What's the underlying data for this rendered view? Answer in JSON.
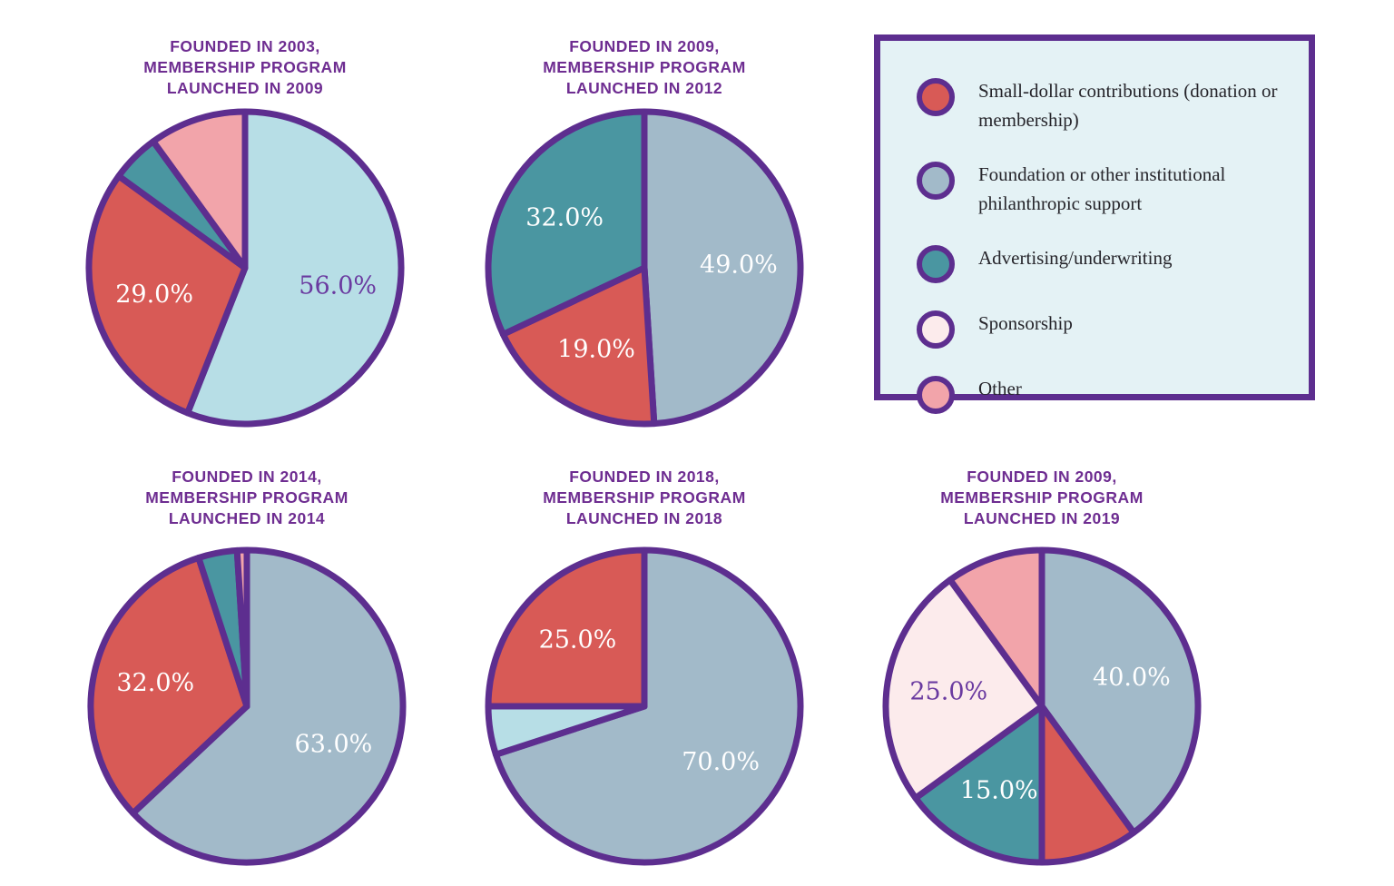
{
  "colors": {
    "stroke_purple": "#5d2e8f",
    "title_purple": "#6e2d91",
    "label_purple": "#6a3aa0",
    "label_white": "#ffffff",
    "red": "#d85a56",
    "gray_blue": "#a2bac9",
    "teal": "#4a96a1",
    "light_pink": "#fcebec",
    "pink": "#f2a4aa",
    "light_cyan": "#b7dee6",
    "legend_background": "#e4f2f5",
    "page_background": "#ffffff"
  },
  "legend": {
    "items": [
      {
        "label": "Small-dollar contributions (donation or membership)",
        "color": "#d85a56"
      },
      {
        "label": "Foundation or other institutional philanthropic support",
        "color": "#a2bac9"
      },
      {
        "label": "Advertising/underwriting",
        "color": "#4a96a1"
      },
      {
        "label": "Sponsorship",
        "color": "#fcebec"
      },
      {
        "label": "Other",
        "color": "#f2a4aa"
      }
    ]
  },
  "chart_data": [
    {
      "type": "pie",
      "title": "FOUNDED IN 2003,\nMEMBERSHIP PROGRAM\nLAUNCHED IN 2009",
      "start_angle_deg": 0,
      "direction": "clockwise",
      "slices": [
        {
          "category": "light blue (not in legend)",
          "value": 56,
          "color": "#b7dee6",
          "pct_label": "56.0%",
          "pct_label_color": "#6a3aa0"
        },
        {
          "category": "Small-dollar contributions (donation or membership)",
          "value": 29,
          "color": "#d85a56",
          "pct_label": "29.0%",
          "pct_label_color": "#ffffff"
        },
        {
          "category": "Advertising/underwriting",
          "value": 5,
          "color": "#4a96a1",
          "pct_label": null,
          "pct_label_color": null
        },
        {
          "category": "Other",
          "value": 10,
          "color": "#f2a4aa",
          "pct_label": null,
          "pct_label_color": null
        }
      ]
    },
    {
      "type": "pie",
      "title": "FOUNDED IN 2009,\nMEMBERSHIP PROGRAM\nLAUNCHED IN 2012",
      "start_angle_deg": 0,
      "direction": "clockwise",
      "slices": [
        {
          "category": "Foundation or other institutional philanthropic support",
          "value": 49,
          "color": "#a2bac9",
          "pct_label": "49.0%",
          "pct_label_color": "#ffffff"
        },
        {
          "category": "Small-dollar contributions (donation or membership)",
          "value": 19,
          "color": "#d85a56",
          "pct_label": "19.0%",
          "pct_label_color": "#ffffff"
        },
        {
          "category": "Advertising/underwriting",
          "value": 32,
          "color": "#4a96a1",
          "pct_label": "32.0%",
          "pct_label_color": "#ffffff"
        }
      ]
    },
    {
      "type": "pie",
      "title": "FOUNDED IN 2014,\nMEMBERSHIP PROGRAM\nLAUNCHED IN 2014",
      "start_angle_deg": 0,
      "direction": "clockwise",
      "slices": [
        {
          "category": "Foundation or other institutional philanthropic support",
          "value": 63,
          "color": "#a2bac9",
          "pct_label": "63.0%",
          "pct_label_color": "#ffffff"
        },
        {
          "category": "Small-dollar contributions (donation or membership)",
          "value": 32,
          "color": "#d85a56",
          "pct_label": "32.0%",
          "pct_label_color": "#ffffff"
        },
        {
          "category": "Advertising/underwriting",
          "value": 4,
          "color": "#4a96a1",
          "pct_label": null,
          "pct_label_color": null
        },
        {
          "category": "Other",
          "value": 1,
          "color": "#f2a4aa",
          "pct_label": null,
          "pct_label_color": null
        }
      ]
    },
    {
      "type": "pie",
      "title": "FOUNDED IN 2018,\nMEMBERSHIP PROGRAM\nLAUNCHED IN 2018",
      "start_angle_deg": 0,
      "direction": "clockwise",
      "slices": [
        {
          "category": "Foundation or other institutional philanthropic support",
          "value": 70,
          "color": "#a2bac9",
          "pct_label": "70.0%",
          "pct_label_color": "#ffffff"
        },
        {
          "category": "light blue (not in legend)",
          "value": 5,
          "color": "#b7dee6",
          "pct_label": null,
          "pct_label_color": null
        },
        {
          "category": "Small-dollar contributions (donation or membership)",
          "value": 25,
          "color": "#d85a56",
          "pct_label": "25.0%",
          "pct_label_color": "#ffffff"
        }
      ]
    },
    {
      "type": "pie",
      "title": "FOUNDED IN 2009,\nMEMBERSHIP PROGRAM\nLAUNCHED IN 2019",
      "start_angle_deg": 0,
      "direction": "clockwise",
      "slices": [
        {
          "category": "Foundation or other institutional philanthropic support",
          "value": 40,
          "color": "#a2bac9",
          "pct_label": "40.0%",
          "pct_label_color": "#ffffff"
        },
        {
          "category": "Small-dollar contributions (donation or membership)",
          "value": 10,
          "color": "#d85a56",
          "pct_label": null,
          "pct_label_color": null
        },
        {
          "category": "Advertising/underwriting",
          "value": 15,
          "color": "#4a96a1",
          "pct_label": "15.0%",
          "pct_label_color": "#ffffff"
        },
        {
          "category": "Sponsorship",
          "value": 25,
          "color": "#fcebec",
          "pct_label": "25.0%",
          "pct_label_color": "#6a3aa0"
        },
        {
          "category": "Other",
          "value": 10,
          "color": "#f2a4aa",
          "pct_label": null,
          "pct_label_color": null
        }
      ]
    }
  ]
}
